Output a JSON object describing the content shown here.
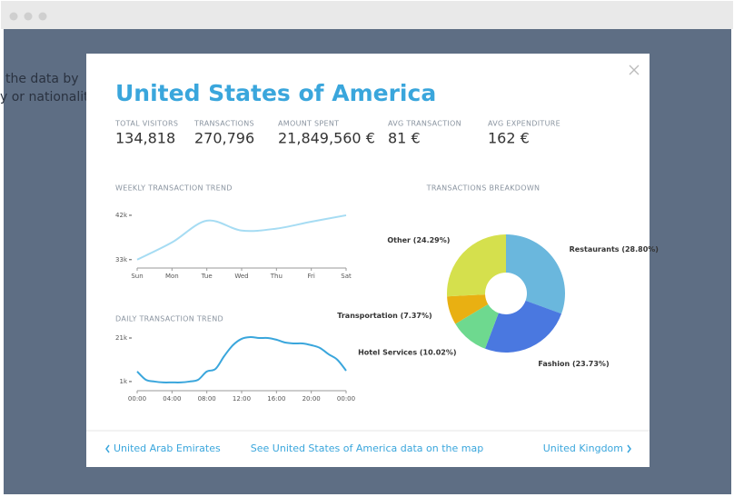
{
  "background_text": [
    "the data by",
    "y or nationality"
  ],
  "modal": {
    "title": "United States of America",
    "stats": [
      {
        "label": "TOTAL VISITORS",
        "value": "134,818"
      },
      {
        "label": "TRANSACTIONS",
        "value": "270,796"
      },
      {
        "label": "AMOUNT SPENT",
        "value": "21,849,560 €"
      },
      {
        "label": "AVG TRANSACTION",
        "value": "81 €"
      },
      {
        "label": "AVG EXPENDITURE",
        "value": "162 €"
      }
    ]
  },
  "chart_data": [
    {
      "type": "line",
      "title": "WEEKLY TRANSACTION TREND",
      "color": "#a6dcf3",
      "categories": [
        "Sun",
        "Mon",
        "Tue",
        "Wed",
        "Thu",
        "Fri",
        "Sat"
      ],
      "values": [
        33000,
        36500,
        40900,
        38900,
        39300,
        40700,
        42000
      ],
      "ylim": [
        31300,
        44200
      ],
      "yticks": [
        {
          "value": 33000,
          "label": "33k"
        },
        {
          "value": 42000,
          "label": "42k"
        }
      ]
    },
    {
      "type": "line",
      "title": "DAILY TRANSACTION TREND",
      "color": "#3aa6dc",
      "categories": [
        "00:00",
        null,
        null,
        null,
        "04:00",
        null,
        null,
        null,
        "08:00",
        null,
        null,
        null,
        "12:00",
        null,
        null,
        null,
        "16:00",
        null,
        null,
        null,
        "20:00",
        null,
        null,
        null,
        "00:00"
      ],
      "values": [
        5600,
        1800,
        1000,
        600,
        600,
        600,
        1000,
        1800,
        5600,
        6800,
        12700,
        17700,
        20600,
        21400,
        21000,
        21000,
        20200,
        18900,
        18500,
        18500,
        17700,
        16400,
        13500,
        11000,
        6000
      ],
      "ylim": [
        -3200,
        26000
      ],
      "yticks": [
        {
          "value": 1000,
          "label": "1k"
        },
        {
          "value": 21000,
          "label": "21k"
        }
      ]
    },
    {
      "type": "pie",
      "title": "TRANSACTIONS BREAKDOWN",
      "values": [
        28.8,
        23.73,
        10.02,
        7.37,
        24.29
      ],
      "value_labels": [
        "Restaurants (28.80%)",
        "Fashion (23.73%)",
        "Hotel Services (10.02%)",
        "Transportation (7.37%)",
        "Other (24.29%)"
      ],
      "colors": [
        "#6ab7dd",
        "#4a78e0",
        "#6ed98f",
        "#e9b012",
        "#d5e04d"
      ]
    }
  ],
  "footer": {
    "prev": "United Arab Emirates",
    "center": "See United States of America data on the map",
    "next": "United Kingdom"
  }
}
